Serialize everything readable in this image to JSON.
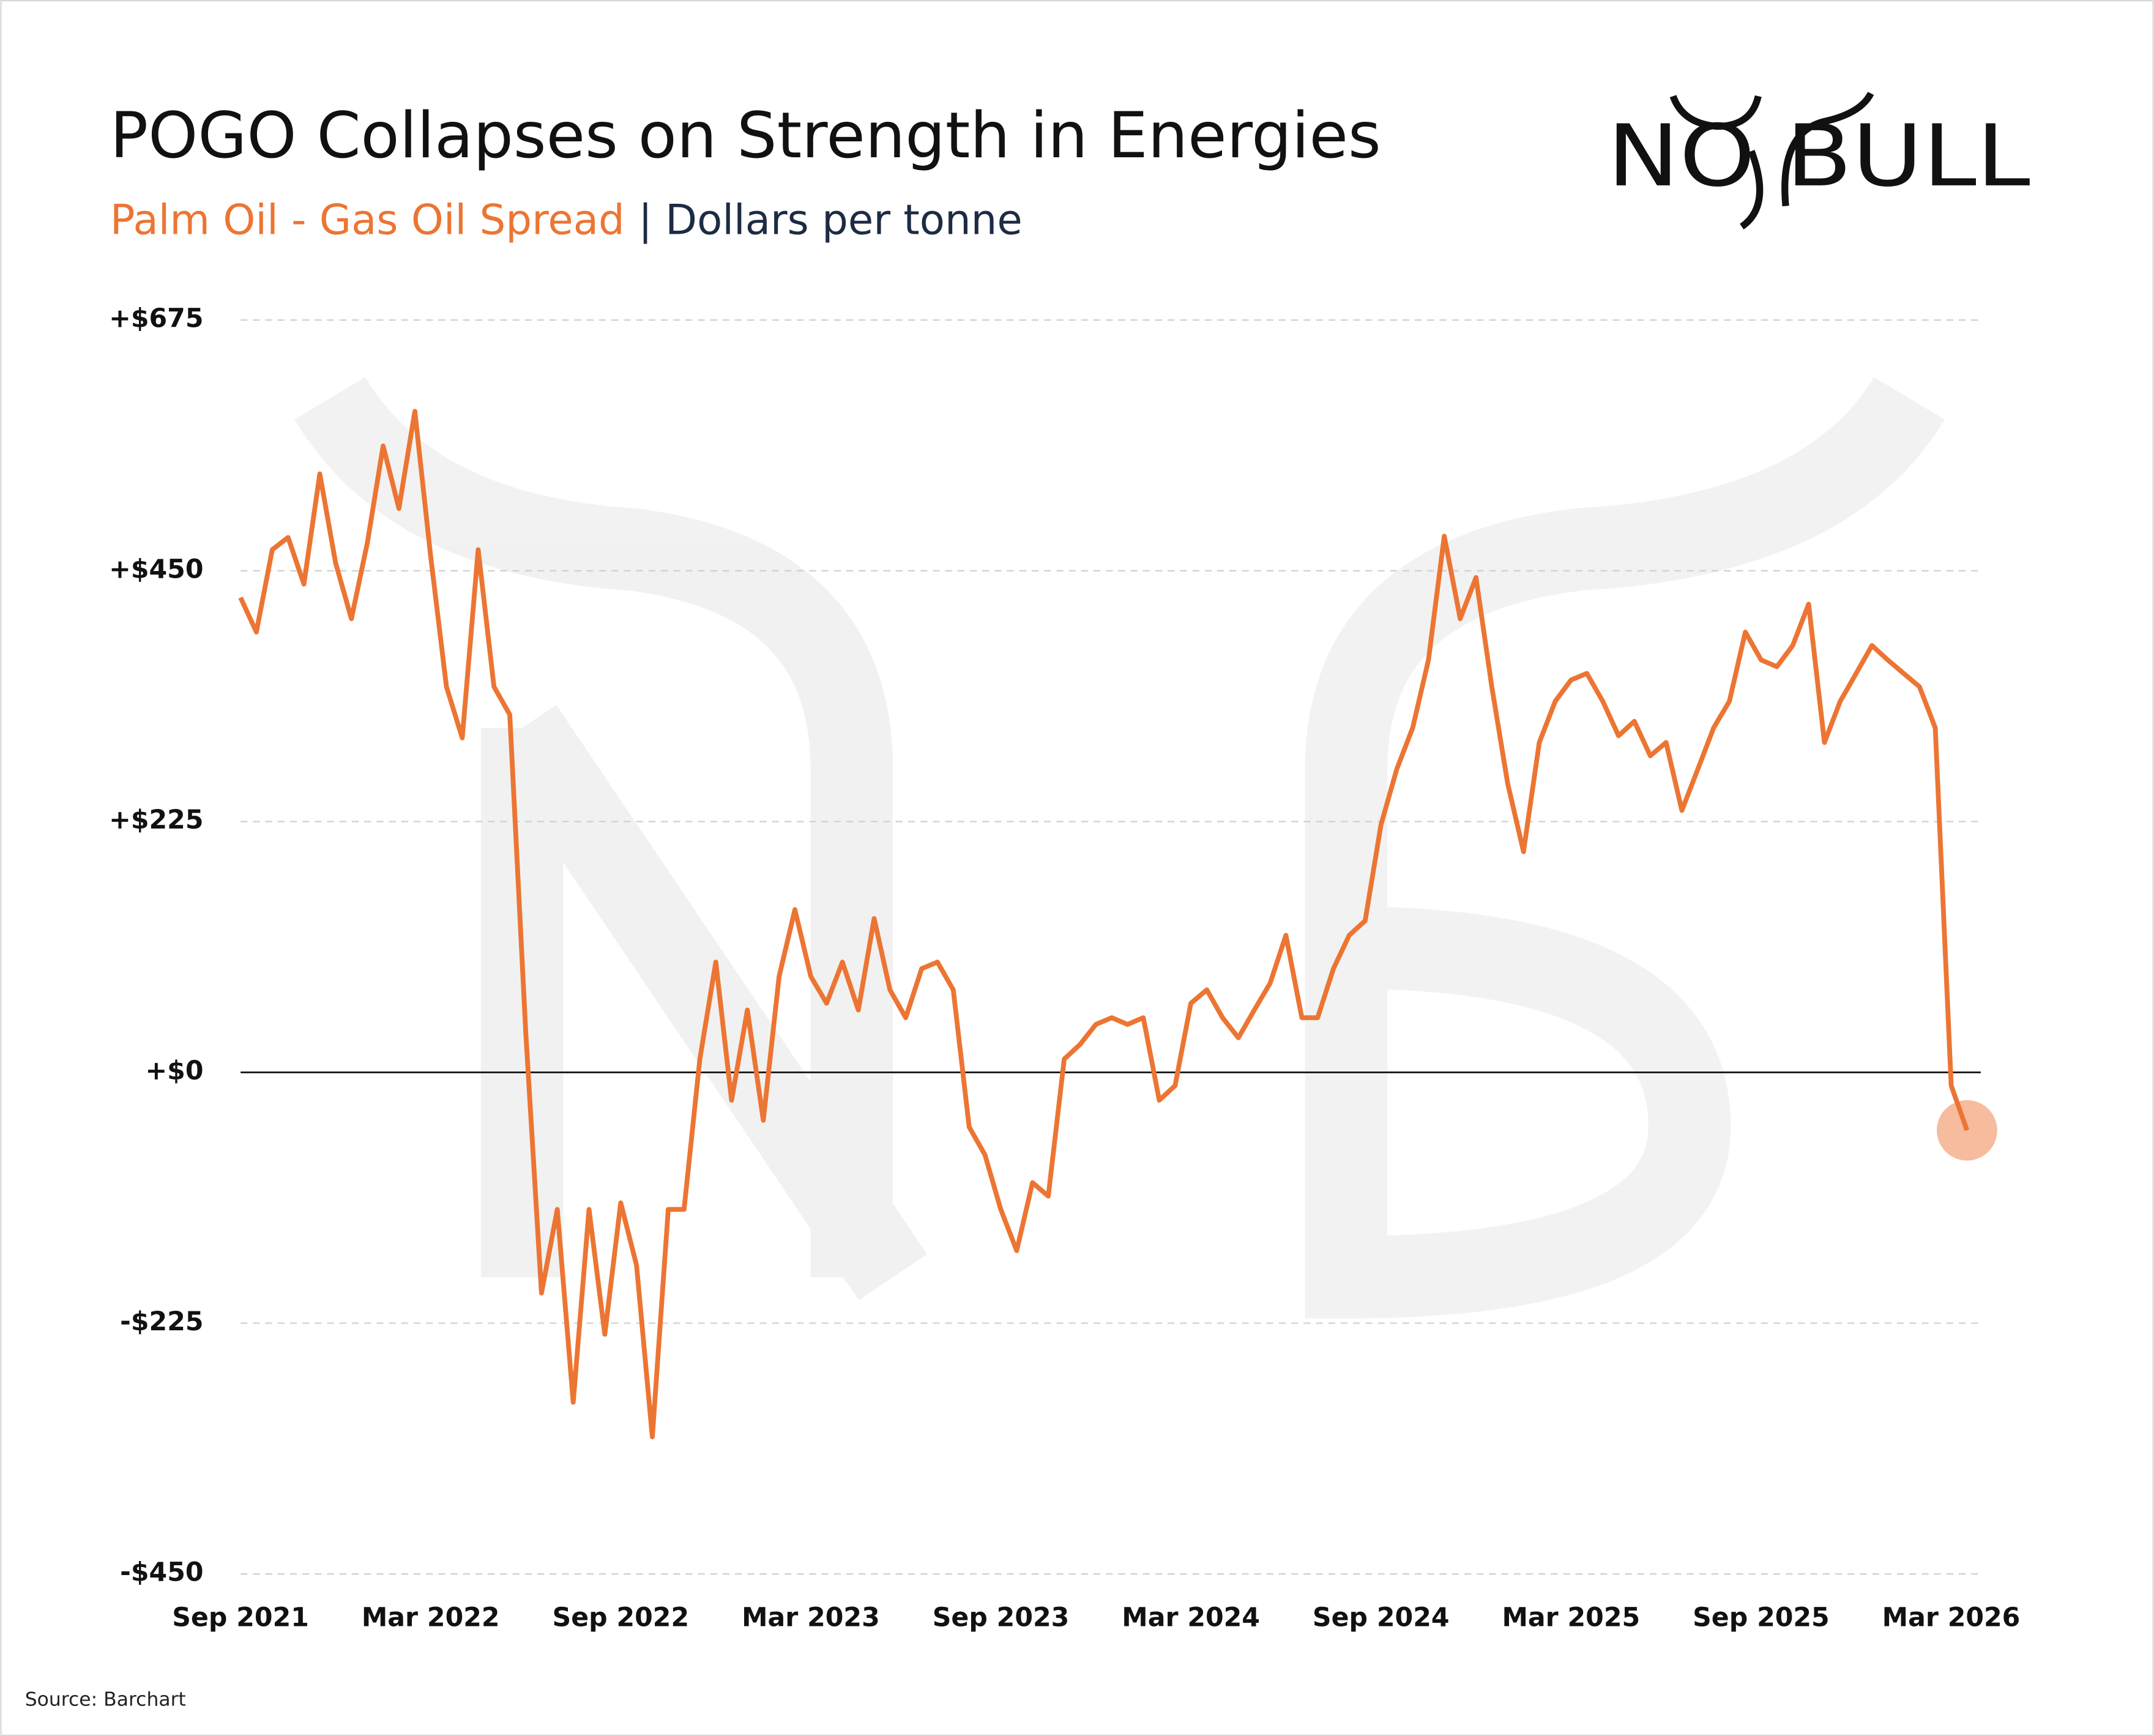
{
  "chart_data": {
    "type": "line",
    "title": "POGO Collapses on Strength in Energies",
    "subtitle": "Palm Oil - Gas Oil Spread",
    "unit_label": "| Dollars per tonne",
    "logo": "NO BULL",
    "source": "Source: Barchart",
    "color": "#ec7533",
    "highlight_color": "#f4b08c",
    "grid": true,
    "categories": [
      "Sep 2021",
      null,
      null,
      null,
      null,
      null,
      null,
      null,
      null,
      null,
      null,
      null,
      "Mar 2022",
      null,
      null,
      null,
      null,
      null,
      null,
      null,
      null,
      null,
      null,
      null,
      "Sep 2022",
      null,
      null,
      null,
      null,
      null,
      null,
      null,
      null,
      null,
      null,
      null,
      "Mar 2023",
      null,
      null,
      null,
      null,
      null,
      null,
      null,
      null,
      null,
      null,
      null,
      "Sep 2023",
      null,
      null,
      null,
      null,
      null,
      null,
      null,
      null,
      null,
      null,
      null,
      "Mar 2024",
      null,
      null,
      null,
      null,
      null,
      null,
      null,
      null,
      null,
      null,
      null,
      "Sep 2024",
      null,
      null,
      null,
      null,
      null,
      null,
      null,
      null,
      null,
      null,
      null,
      "Mar 2025",
      null,
      null,
      null,
      null,
      null,
      null,
      null,
      null,
      null,
      null,
      null,
      "Sep 2025",
      null,
      null,
      null,
      null,
      null,
      null,
      null,
      null,
      null,
      null,
      null,
      "Mar 2026",
      null
    ],
    "values": [
      426,
      395,
      469,
      480,
      438,
      537,
      457,
      407,
      475,
      562,
      506,
      593,
      463,
      346,
      300,
      469,
      346,
      321,
      37,
      -198,
      -123,
      -296,
      -123,
      -235,
      -117,
      -173,
      -327,
      -123,
      -123,
      12,
      99,
      -25,
      56,
      -43,
      86,
      146,
      86,
      62,
      99,
      56,
      138,
      74,
      49,
      93,
      99,
      74,
      -49,
      -74,
      -123,
      -160,
      -99,
      -111,
      12,
      25,
      43,
      49,
      43,
      49,
      -25,
      -12,
      62,
      74,
      49,
      31,
      56,
      80,
      123,
      49,
      49,
      93,
      123,
      136,
      222,
      272,
      309,
      370,
      481,
      407,
      444,
      346,
      259,
      198,
      296,
      333,
      352,
      358,
      333,
      302,
      315,
      284,
      296,
      235,
      272,
      309,
      333,
      395,
      370,
      364,
      383,
      420,
      296,
      333,
      358,
      383,
      370,
      358,
      346,
      309,
      -12,
      -52
    ],
    "ylim": [
      -450,
      675
    ],
    "yticks": [
      {
        "value": -450,
        "label": "-$450"
      },
      {
        "value": -225,
        "label": "-$225"
      },
      {
        "value": 0,
        "label": "+$0"
      },
      {
        "value": 225,
        "label": "+$225"
      },
      {
        "value": 450,
        "label": "+$450"
      },
      {
        "value": 675,
        "label": "+$675"
      }
    ]
  }
}
